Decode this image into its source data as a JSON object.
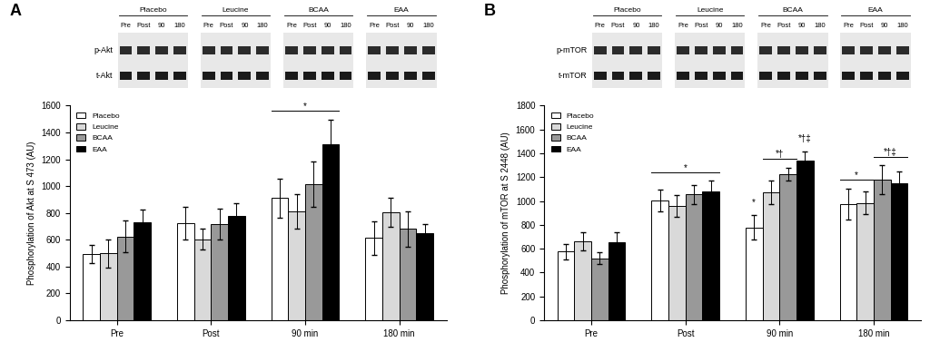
{
  "chart_data": [
    {
      "type": "bar",
      "panel": "A",
      "y_label": "Phosphorylation of Akt at S 473 (AU)",
      "categories": [
        "Pre",
        "Post",
        "90 min",
        "180 min"
      ],
      "series": [
        {
          "name": "Placebo",
          "color": "#ffffff",
          "values": [
            495,
            725,
            910,
            615
          ],
          "errors": [
            70,
            120,
            145,
            125
          ]
        },
        {
          "name": "Leucine",
          "color": "#d9d9d9",
          "values": [
            500,
            605,
            810,
            805
          ],
          "errors": [
            105,
            80,
            130,
            110
          ]
        },
        {
          "name": "BCAA",
          "color": "#999999",
          "values": [
            625,
            720,
            1015,
            680
          ],
          "errors": [
            120,
            115,
            170,
            130
          ]
        },
        {
          "name": "EAA",
          "color": "#000000",
          "values": [
            730,
            775,
            1310,
            650
          ],
          "errors": [
            95,
            100,
            185,
            65
          ]
        }
      ],
      "ylim": [
        0,
        1600
      ],
      "yticks": [
        0,
        200,
        400,
        600,
        800,
        1000,
        1200,
        1400,
        1600
      ],
      "legend": "upper left",
      "annotations": [
        {
          "text": "*",
          "category": "90 min",
          "series": [
            "Placebo",
            "EAA"
          ]
        }
      ],
      "blot": {
        "groups": [
          "Placebo",
          "Leucine",
          "BCAA",
          "EAA"
        ],
        "lanes": [
          "Pre",
          "Post",
          "90",
          "180"
        ],
        "rows": [
          "p-Akt",
          "t-Akt"
        ]
      }
    },
    {
      "type": "bar",
      "panel": "B",
      "y_label": "Phosphorylation of mTOR at S 2448 (AU)",
      "categories": [
        "Pre",
        "Post",
        "90 min",
        "180 min"
      ],
      "series": [
        {
          "name": "Placebo",
          "color": "#ffffff",
          "values": [
            575,
            1005,
            780,
            975
          ],
          "errors": [
            65,
            90,
            100,
            130
          ]
        },
        {
          "name": "Leucine",
          "color": "#d9d9d9",
          "values": [
            665,
            960,
            1075,
            985
          ],
          "errors": [
            75,
            90,
            100,
            95
          ]
        },
        {
          "name": "BCAA",
          "color": "#999999",
          "values": [
            520,
            1055,
            1225,
            1180
          ],
          "errors": [
            50,
            80,
            55,
            120
          ]
        },
        {
          "name": "EAA",
          "color": "#000000",
          "values": [
            655,
            1080,
            1340,
            1150
          ],
          "errors": [
            80,
            90,
            75,
            95
          ]
        }
      ],
      "ylim": [
        0,
        1800
      ],
      "yticks": [
        0,
        200,
        400,
        600,
        800,
        1000,
        1200,
        1400,
        1600,
        1800
      ],
      "legend": "upper left",
      "annotations": [
        {
          "text": "*",
          "category": "Post",
          "series": [
            "Placebo",
            "EAA"
          ]
        },
        {
          "text": "*",
          "category": "90 min",
          "series": [
            "Placebo"
          ]
        },
        {
          "text": "*†",
          "category": "90 min",
          "series": [
            "Leucine",
            "BCAA"
          ]
        },
        {
          "text": "*†‡",
          "category": "90 min",
          "series": [
            "EAA"
          ]
        },
        {
          "text": "*",
          "category": "180 min",
          "series": [
            "Placebo",
            "Leucine"
          ]
        },
        {
          "text": "*†‡",
          "category": "180 min",
          "series": [
            "BCAA",
            "EAA"
          ]
        }
      ],
      "blot": {
        "groups": [
          "Placebo",
          "Leucine",
          "BCAA",
          "EAA"
        ],
        "lanes": [
          "Pre",
          "Post",
          "90",
          "180"
        ],
        "rows": [
          "p-mTOR",
          "t-mTOR"
        ]
      }
    }
  ]
}
